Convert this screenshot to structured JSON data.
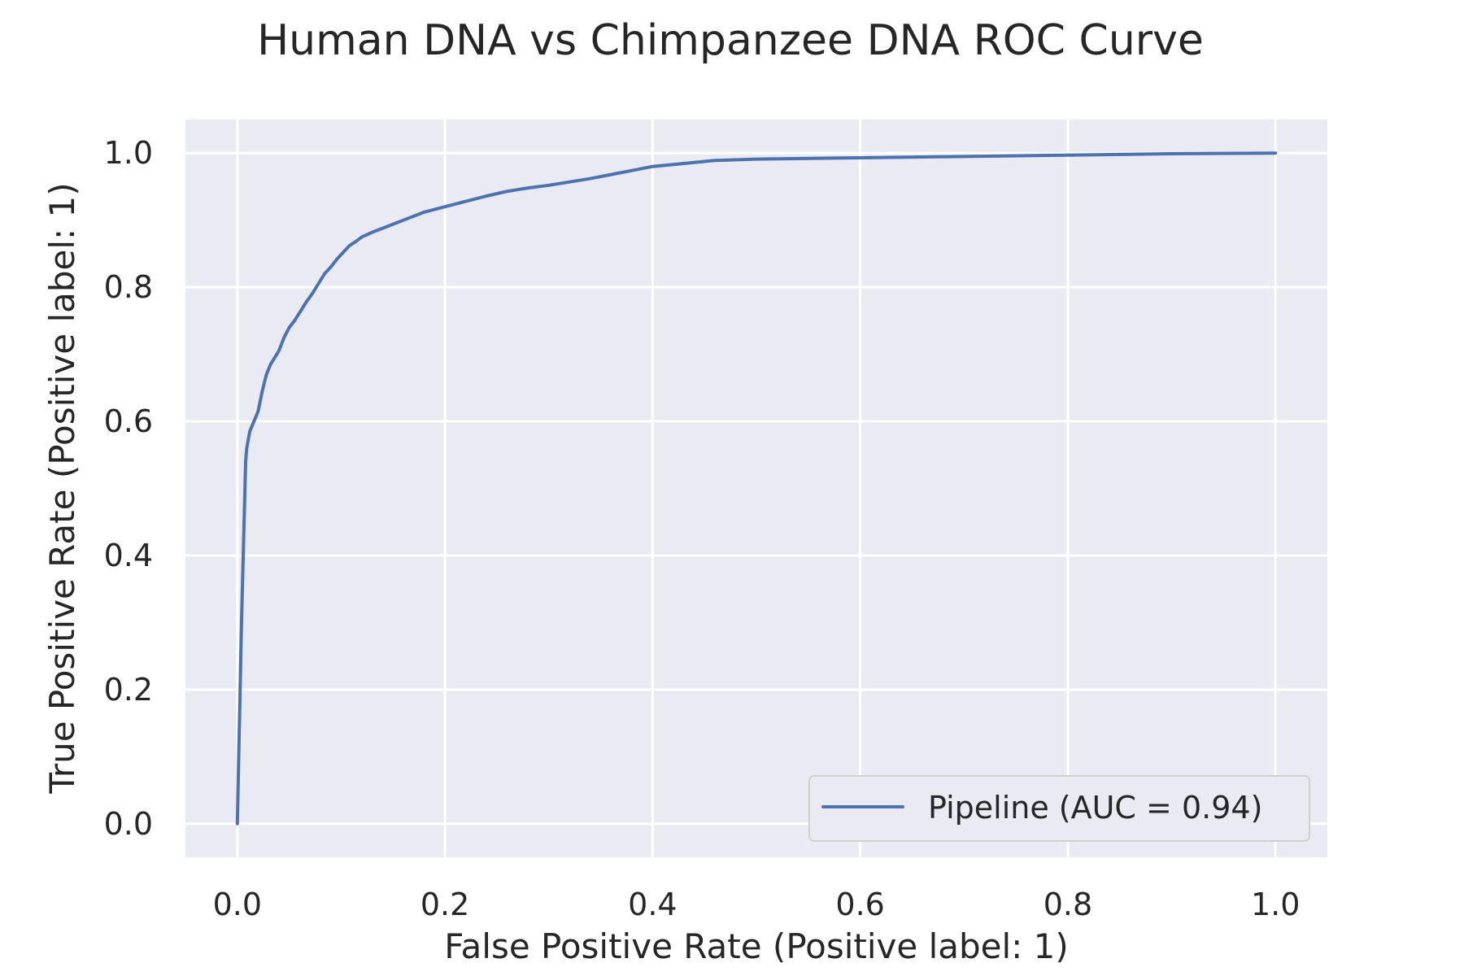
{
  "chart_data": {
    "type": "line",
    "title": "Human DNA vs Chimpanzee DNA ROC Curve",
    "xlabel": "False Positive Rate (Positive label: 1)",
    "ylabel": "True Positive Rate (Positive label: 1)",
    "xlim": [
      -0.05,
      1.05
    ],
    "ylim": [
      -0.05,
      1.05
    ],
    "x_ticks": [
      0.0,
      0.2,
      0.4,
      0.6,
      0.8,
      1.0
    ],
    "y_ticks": [
      0.0,
      0.2,
      0.4,
      0.6,
      0.8,
      1.0
    ],
    "x_tick_labels": [
      "0.0",
      "0.2",
      "0.4",
      "0.6",
      "0.8",
      "1.0"
    ],
    "y_tick_labels": [
      "0.0",
      "0.2",
      "0.4",
      "0.6",
      "0.8",
      "1.0"
    ],
    "grid": true,
    "legend_position": "lower right",
    "colors": {
      "plot_background": "#eaeaf2",
      "grid": "#ffffff",
      "series": "#4c72b0",
      "text": "#262626"
    },
    "series": [
      {
        "name": "Pipeline (AUC = 0.94)",
        "x": [
          0.0,
          0.004,
          0.008,
          0.009,
          0.012,
          0.016,
          0.02,
          0.024,
          0.028,
          0.032,
          0.036,
          0.04,
          0.045,
          0.05,
          0.055,
          0.06,
          0.066,
          0.072,
          0.078,
          0.084,
          0.09,
          0.096,
          0.102,
          0.108,
          0.114,
          0.12,
          0.13,
          0.14,
          0.15,
          0.16,
          0.17,
          0.18,
          0.2,
          0.22,
          0.24,
          0.26,
          0.28,
          0.3,
          0.32,
          0.34,
          0.36,
          0.38,
          0.4,
          0.42,
          0.44,
          0.46,
          0.5,
          0.6,
          0.7,
          0.8,
          0.9,
          1.0
        ],
        "y": [
          0.0,
          0.3,
          0.54,
          0.56,
          0.585,
          0.6,
          0.615,
          0.645,
          0.67,
          0.685,
          0.695,
          0.705,
          0.725,
          0.74,
          0.75,
          0.762,
          0.777,
          0.79,
          0.805,
          0.82,
          0.83,
          0.842,
          0.852,
          0.862,
          0.868,
          0.875,
          0.882,
          0.888,
          0.894,
          0.9,
          0.906,
          0.912,
          0.92,
          0.928,
          0.936,
          0.943,
          0.948,
          0.952,
          0.957,
          0.962,
          0.968,
          0.974,
          0.98,
          0.983,
          0.986,
          0.989,
          0.991,
          0.993,
          0.995,
          0.997,
          0.999,
          1.0
        ]
      }
    ]
  }
}
